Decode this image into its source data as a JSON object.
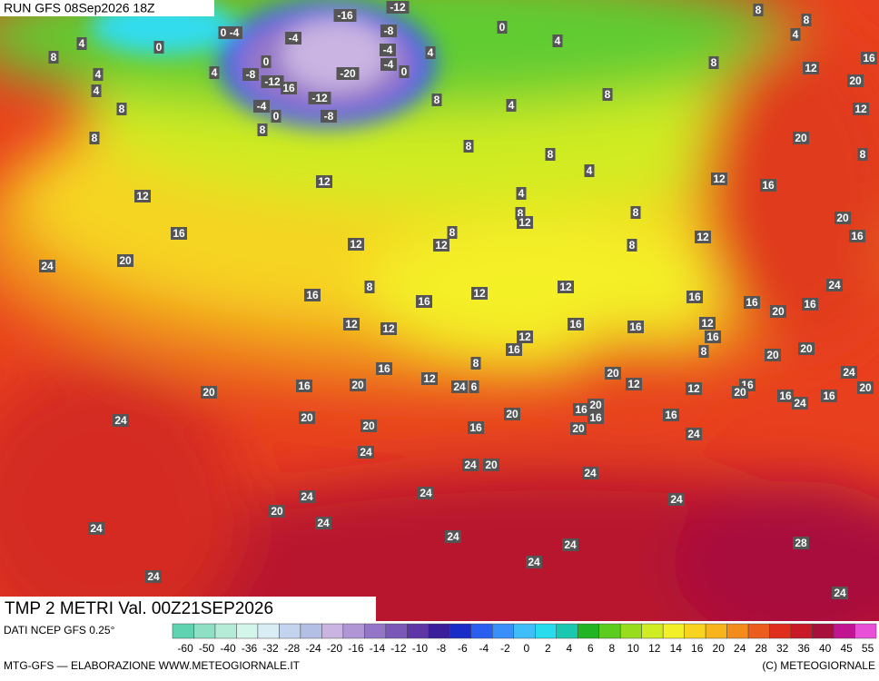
{
  "header": {
    "run": "RUN GFS 08Sep2026 18Z"
  },
  "title": "TMP 2 METRI Val. 00Z21SEP2026",
  "source": "DATI NCEP GFS 0.25°",
  "credit": "MTG-GFS — ELABORAZIONE WWW.METEOGIORNALE.IT",
  "copyright": "(C) METEOGIORNALE",
  "legend": {
    "ticks": [
      -60,
      -50,
      -40,
      -36,
      -32,
      -28,
      -24,
      -20,
      -16,
      -14,
      -12,
      -10,
      -8,
      -6,
      -4,
      -2,
      0,
      2,
      4,
      6,
      8,
      10,
      12,
      14,
      16,
      20,
      24,
      28,
      32,
      36,
      40,
      45,
      55
    ],
    "colors": [
      "#5fd3b0",
      "#8ee0c4",
      "#b4ecd8",
      "#d4f6ea",
      "#d8eef4",
      "#c4d4ee",
      "#b4bfe6",
      "#c9b4e2",
      "#b196d6",
      "#9476c8",
      "#7a58b8",
      "#5e36a6",
      "#3a1e9a",
      "#1a2cc8",
      "#2a5ef0",
      "#3a90f8",
      "#40bef8",
      "#28dcee",
      "#1ac8b0",
      "#22b422",
      "#5ccc1e",
      "#98dc1e",
      "#d0ec22",
      "#f4f028",
      "#f8d420",
      "#f8b41c",
      "#f48c1c",
      "#ec5c1c",
      "#e02e1c",
      "#c81a26",
      "#a8103c",
      "#c01490",
      "#e850d8"
    ]
  },
  "labels": [
    -16,
    -12,
    0,
    8,
    4,
    8,
    4,
    0,
    -4,
    -8,
    -4,
    4,
    8,
    0,
    4,
    4,
    -8,
    -12,
    16,
    -20,
    -4,
    0,
    4,
    8,
    12,
    16,
    4,
    8,
    -12,
    -4,
    0,
    -8,
    8,
    4,
    8,
    20,
    12,
    8,
    8,
    20,
    8,
    8,
    4,
    8,
    12,
    12,
    16,
    12,
    4,
    8,
    12,
    8,
    20,
    16,
    8,
    12,
    12,
    8,
    12,
    16,
    24,
    20,
    8,
    12,
    12,
    24,
    16,
    16,
    16,
    16,
    20,
    16,
    12,
    12,
    16,
    16,
    12,
    16,
    8,
    12,
    16,
    20,
    20,
    8,
    16,
    20,
    12,
    24,
    20,
    16,
    20,
    12,
    24,
    6,
    12,
    16,
    20,
    16,
    24,
    16,
    20,
    16,
    20,
    16,
    20,
    20,
    16,
    24,
    20,
    20,
    16,
    24,
    24,
    24,
    20,
    24,
    24,
    24,
    24,
    20,
    24,
    24,
    24,
    24,
    28,
    24,
    24,
    24,
    0,
    -4
  ]
}
